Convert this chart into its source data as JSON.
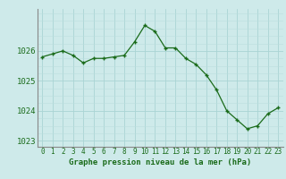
{
  "hours": [
    0,
    1,
    2,
    3,
    4,
    5,
    6,
    7,
    8,
    9,
    10,
    11,
    12,
    13,
    14,
    15,
    16,
    17,
    18,
    19,
    20,
    21,
    22,
    23
  ],
  "pressure": [
    1025.8,
    1025.9,
    1026.0,
    1025.85,
    1025.6,
    1025.75,
    1025.75,
    1025.8,
    1025.85,
    1026.3,
    1026.85,
    1026.65,
    1026.1,
    1026.1,
    1025.75,
    1025.55,
    1025.2,
    1024.7,
    1024.0,
    1023.7,
    1023.4,
    1023.5,
    1023.9,
    1024.1
  ],
  "line_color": "#1a6b1a",
  "marker_color": "#1a6b1a",
  "bg_color": "#ceeaea",
  "grid_color_major": "#aad4d4",
  "grid_color_minor": "#bbdede",
  "xlabel": "Graphe pression niveau de la mer (hPa)",
  "xlabel_color": "#1a6b1a",
  "ylim": [
    1022.8,
    1027.4
  ],
  "yticks": [
    1023,
    1024,
    1025,
    1026
  ],
  "xticks": [
    0,
    1,
    2,
    3,
    4,
    5,
    6,
    7,
    8,
    9,
    10,
    11,
    12,
    13,
    14,
    15,
    16,
    17,
    18,
    19,
    20,
    21,
    22,
    23
  ],
  "tick_fontsize": 5.5,
  "xlabel_fontsize": 6.5,
  "ytick_fontsize": 6.5
}
